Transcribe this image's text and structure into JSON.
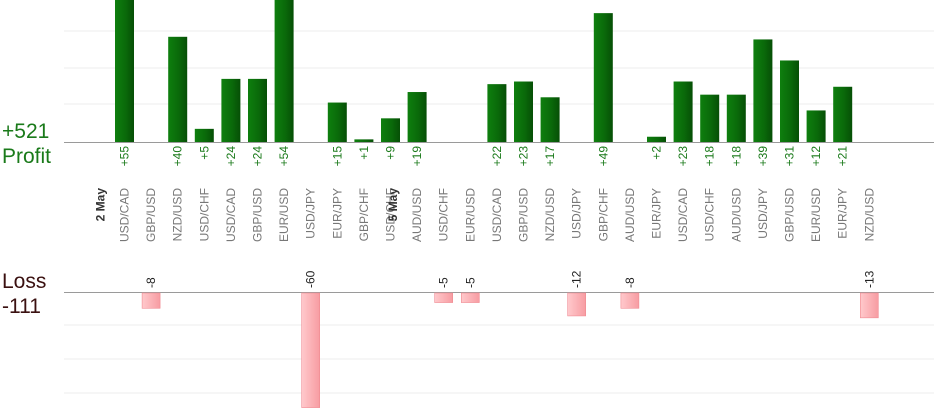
{
  "chart_data": {
    "type": "bar",
    "categories": [
      "USD/CAD",
      "GBP/USD",
      "NZD/USD",
      "USD/CHF",
      "USD/CAD",
      "GBP/USD",
      "EUR/USD",
      "USD/JPY",
      "EUR/JPY",
      "GBP/CHF",
      "USD/CHF",
      "AUD/USD",
      "USD/CHF",
      "EUR/USD",
      "USD/CAD",
      "GBP/USD",
      "NZD/USD",
      "USD/JPY",
      "GBP/CHF",
      "AUD/USD",
      "EUR/JPY",
      "USD/CAD",
      "USD/CHF",
      "AUD/USD",
      "USD/JPY",
      "GBP/USD",
      "EUR/USD",
      "EUR/JPY",
      "NZD/USD"
    ],
    "date_markers": [
      {
        "before_index": 0,
        "label": "2 May"
      },
      {
        "before_index": 11,
        "label": "5 May"
      }
    ],
    "series": [
      {
        "name": "Profit",
        "color": "#0a6e0a",
        "values": [
          55,
          0,
          40,
          5,
          24,
          24,
          54,
          0,
          15,
          1,
          9,
          19,
          0,
          0,
          22,
          23,
          17,
          0,
          49,
          0,
          2,
          23,
          18,
          18,
          39,
          31,
          12,
          21,
          0
        ],
        "labels": [
          "+55",
          "",
          "+40",
          "+5",
          "+24",
          "+24",
          "+54",
          "",
          "+15",
          "+1",
          "+9",
          "+19",
          "",
          "",
          "+22",
          "+23",
          "+17",
          "",
          "+49",
          "",
          "+2",
          "+23",
          "+18",
          "+18",
          "+39",
          "+31",
          "+12",
          "+21",
          ""
        ]
      },
      {
        "name": "Loss",
        "color": "#ffb6b9",
        "values": [
          0,
          -8,
          0,
          0,
          0,
          0,
          0,
          -60,
          0,
          0,
          0,
          0,
          -5,
          -5,
          0,
          0,
          0,
          -12,
          0,
          -8,
          0,
          0,
          0,
          0,
          0,
          0,
          0,
          0,
          -13
        ],
        "labels": [
          "",
          "-8",
          "",
          "",
          "",
          "",
          "",
          "-60",
          "",
          "",
          "",
          "",
          "-5",
          "-5",
          "",
          "",
          "",
          "-12",
          "",
          "-8",
          "",
          "",
          "",
          "",
          "",
          "",
          "",
          "",
          "-13"
        ]
      }
    ],
    "totals": {
      "profit_value": "+521",
      "profit_label": "Profit",
      "loss_label": "Loss",
      "loss_value": "-111"
    },
    "grid": true
  }
}
